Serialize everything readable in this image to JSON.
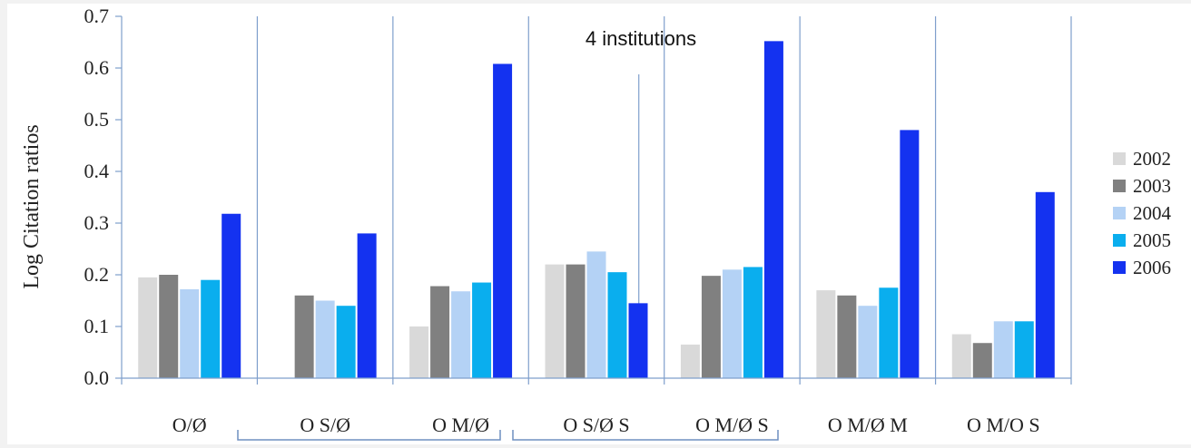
{
  "chart_data": {
    "type": "bar",
    "ylabel": "Log Citation ratios",
    "xlabel": "",
    "ylim": [
      0,
      0.7
    ],
    "yticks": [
      "0.0",
      "0.1",
      "0.2",
      "0.3",
      "0.4",
      "0.5",
      "0.6",
      "0.7"
    ],
    "categories": [
      "O/Ø",
      "O S/Ø",
      "O M/Ø",
      "O S/Ø S",
      "O M/Ø S",
      "O M/Ø M",
      "O M/O S"
    ],
    "series": [
      {
        "name": "2002",
        "color": "#d9d9d9",
        "values": [
          0.195,
          0.0,
          0.1,
          0.22,
          0.065,
          0.17,
          0.085
        ]
      },
      {
        "name": "2003",
        "color": "#808080",
        "values": [
          0.2,
          0.16,
          0.178,
          0.22,
          0.198,
          0.16,
          0.068
        ]
      },
      {
        "name": "2004",
        "color": "#b4d2f5",
        "values": [
          0.172,
          0.15,
          0.168,
          0.245,
          0.21,
          0.14,
          0.11
        ]
      },
      {
        "name": "2005",
        "color": "#0aaeee",
        "values": [
          0.19,
          0.14,
          0.185,
          0.205,
          0.215,
          0.175,
          0.11
        ]
      },
      {
        "name": "2006",
        "color": "#1432f0",
        "values": [
          0.318,
          0.28,
          0.608,
          0.145,
          0.652,
          0.48,
          0.36
        ]
      }
    ],
    "annotation": "4 institutions",
    "grid": "vertical separators",
    "legend_position": "right"
  }
}
